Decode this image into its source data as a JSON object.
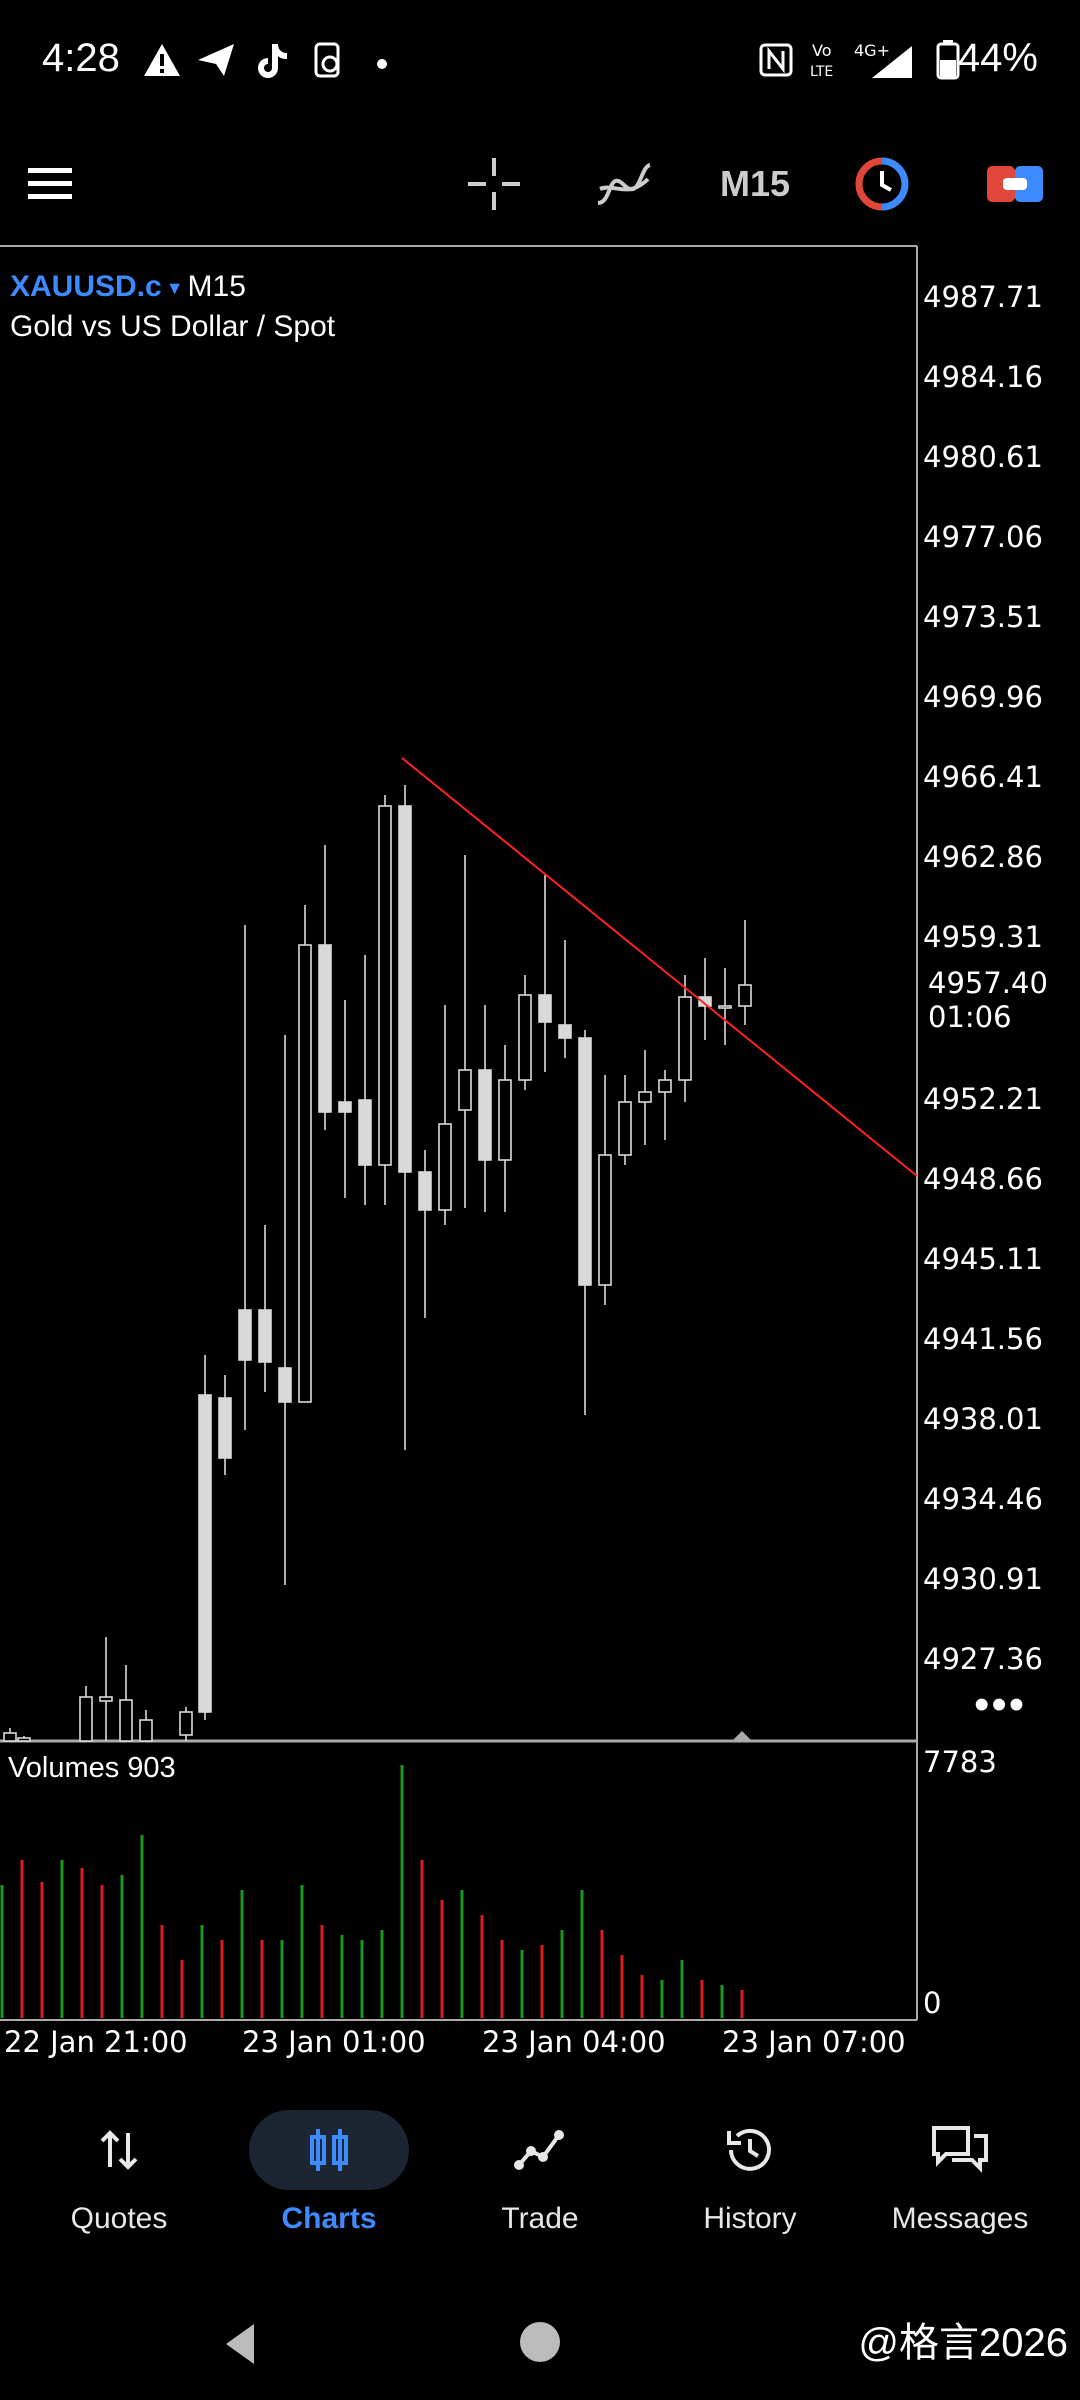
{
  "status_bar": {
    "time": "4:28",
    "battery": "44%",
    "network_top": "4G+",
    "volte_label": "Vo LTE"
  },
  "toolbar": {
    "timeframe_label": "M15",
    "icons": [
      "menu-icon",
      "crosshair-icon",
      "indicators-icon",
      "timeframe",
      "clock-icon",
      "trade-toggle-icon"
    ]
  },
  "chart": {
    "symbol": "XAUUSD.c",
    "timeframe": "M15",
    "description": "Gold vs US Dollar / Spot",
    "price_ticks": [
      "4987.71",
      "4984.16",
      "4980.61",
      "4977.06",
      "4973.51",
      "4969.96",
      "4966.41",
      "4962.86",
      "4959.31",
      "4952.21",
      "4948.66",
      "4945.11",
      "4941.56",
      "4938.01",
      "4934.46",
      "4930.91",
      "4927.36"
    ],
    "current_price": "4957.40",
    "countdown": "01:06",
    "volume_label": "Volumes 903",
    "volume_max": "7783",
    "volume_min": "0",
    "time_ticks": [
      "22 Jan 21:00",
      "23 Jan 01:00",
      "23 Jan 04:00",
      "23 Jan 07:00"
    ],
    "colors": {
      "background": "#000000",
      "candle": "#d9d9d9",
      "trendline": "#ff2020",
      "vol_up": "#1a9a1a",
      "vol_down": "#e01b1b",
      "accent": "#3d8bff"
    }
  },
  "bottom_nav": {
    "items": [
      {
        "label": "Quotes",
        "icon": "quotes-icon"
      },
      {
        "label": "Charts",
        "icon": "charts-icon",
        "active": true
      },
      {
        "label": "Trade",
        "icon": "trade-icon"
      },
      {
        "label": "History",
        "icon": "history-icon"
      },
      {
        "label": "Messages",
        "icon": "messages-icon"
      }
    ]
  },
  "watermark": "@格言2026"
}
